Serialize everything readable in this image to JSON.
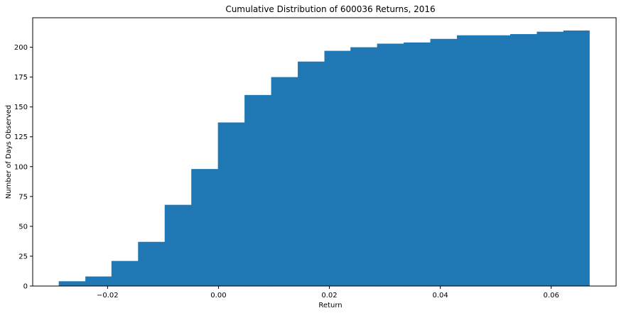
{
  "chart_data": {
    "type": "bar",
    "title": "Cumulative Distribution of 600036 Returns, 2016",
    "xlabel": "Return",
    "ylabel": "Number of Days Observed",
    "cumulative": true,
    "color": "#1f77b4",
    "bin_edges": [
      -0.0288,
      -0.024,
      -0.0193,
      -0.0145,
      -0.0097,
      -0.0049,
      -0.0001,
      0.0047,
      0.0095,
      0.0143,
      0.0191,
      0.0238,
      0.0286,
      0.0334,
      0.0382,
      0.043,
      0.0478,
      0.0526,
      0.0574,
      0.0622,
      0.0669
    ],
    "values": [
      4,
      8,
      21,
      37,
      68,
      98,
      137,
      160,
      175,
      188,
      197,
      200,
      203,
      204,
      207,
      210,
      210,
      211,
      213,
      214
    ],
    "xlim": [
      -0.0335,
      0.0717
    ],
    "ylim": [
      0,
      224.7
    ],
    "x_ticks": [
      -0.02,
      0.0,
      0.02,
      0.04,
      0.06
    ],
    "x_tick_labels": [
      "−0.02",
      "0.00",
      "0.02",
      "0.04",
      "0.06"
    ],
    "y_ticks": [
      0,
      25,
      50,
      75,
      100,
      125,
      150,
      175,
      200
    ],
    "y_tick_labels": [
      "0",
      "25",
      "50",
      "75",
      "100",
      "125",
      "150",
      "175",
      "200"
    ],
    "grid": false,
    "legend": "none"
  }
}
